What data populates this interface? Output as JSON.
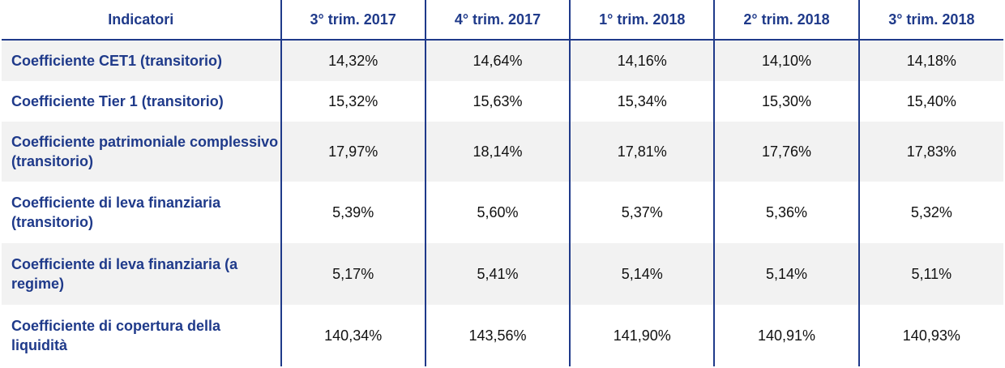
{
  "table": {
    "headers": [
      "Indicatori",
      "3° trim. 2017",
      "4° trim. 2017",
      "1° trim. 2018",
      "2° trim. 2018",
      "3° trim. 2018"
    ],
    "rows": [
      {
        "label": "Coefficiente CET1 (transitorio)",
        "values": [
          "14,32%",
          "14,64%",
          "14,16%",
          "14,10%",
          "14,18%"
        ]
      },
      {
        "label": "Coefficiente Tier 1 (transitorio)",
        "values": [
          "15,32%",
          "15,63%",
          "15,34%",
          "15,30%",
          "15,40%"
        ]
      },
      {
        "label": "Coefficiente patrimoniale complessivo (transitorio)",
        "values": [
          "17,97%",
          "18,14%",
          "17,81%",
          "17,76%",
          "17,83%"
        ]
      },
      {
        "label": "Coefficiente di leva finanziaria (transitorio)",
        "values": [
          "5,39%",
          "5,60%",
          "5,37%",
          "5,36%",
          "5,32%"
        ]
      },
      {
        "label": "Coefficiente di leva finanziaria (a regime)",
        "values": [
          "5,17%",
          "5,41%",
          "5,14%",
          "5,14%",
          "5,11%"
        ]
      },
      {
        "label": "Coefficiente di copertura della liquidità",
        "values": [
          "140,34%",
          "143,56%",
          "141,90%",
          "140,91%",
          "140,93%"
        ]
      }
    ]
  },
  "colors": {
    "header_text": "#1f3a8a",
    "label_text": "#1f3a8a",
    "shade": "#f2f2f2"
  }
}
